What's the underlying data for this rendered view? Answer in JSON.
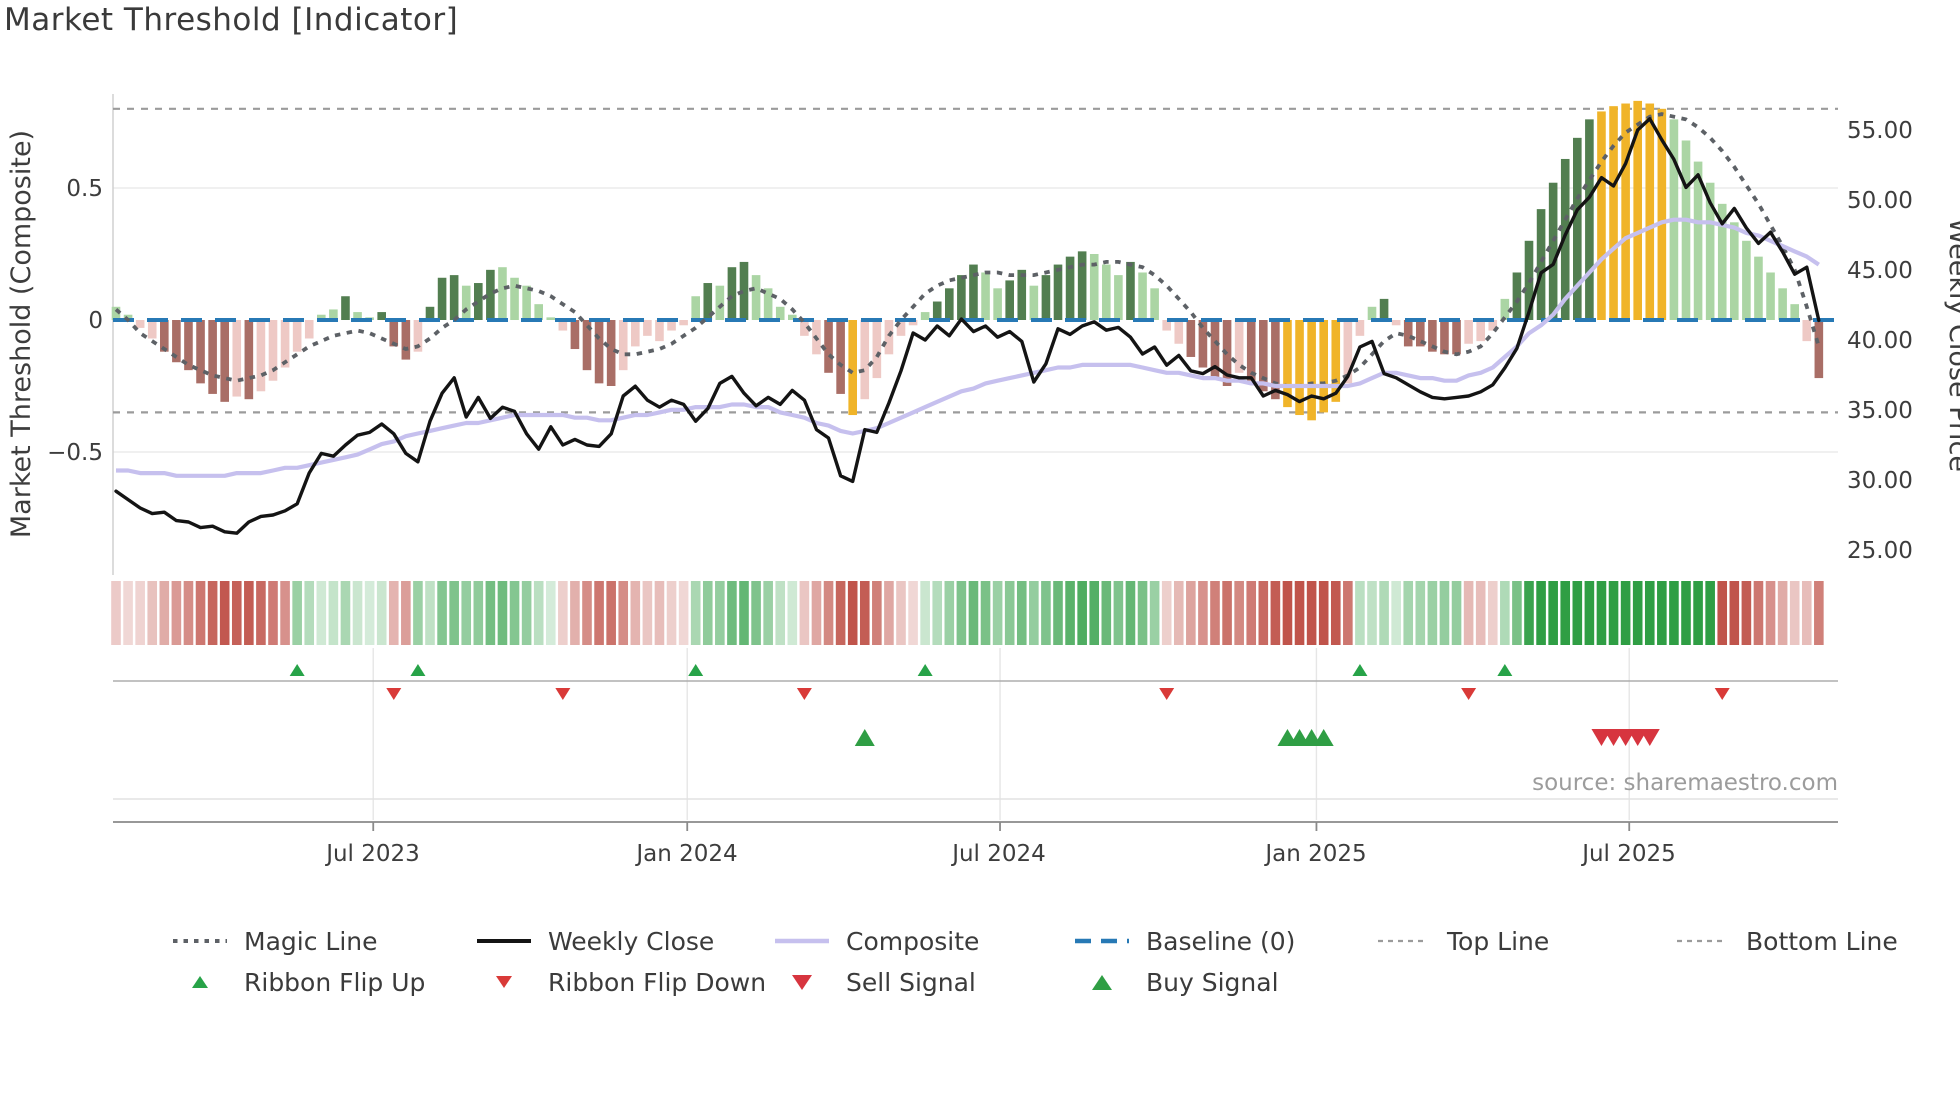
{
  "title": "Market Threshold [Indicator]",
  "source_note": "source: sharemaestro.com",
  "axes": {
    "left": {
      "label": "Market Threshold (Composite)",
      "ticks": [
        "0.5",
        "0",
        "−0.5"
      ]
    },
    "right": {
      "label": "Weekly Close Price",
      "ticks": [
        "55.00",
        "50.00",
        "45.00",
        "40.00",
        "35.00",
        "30.00",
        "25.00"
      ]
    },
    "x": {
      "ticks": [
        "Jul 2023",
        "Jan 2024",
        "Jul 2024",
        "Jan 2025",
        "Jul 2025"
      ]
    }
  },
  "legend": {
    "row1": [
      {
        "icon": "magic-line-swatch",
        "label": "Magic Line"
      },
      {
        "icon": "weekly-close-swatch",
        "label": "Weekly Close"
      },
      {
        "icon": "composite-swatch",
        "label": "Composite"
      },
      {
        "icon": "baseline-swatch",
        "label": "Baseline (0)"
      },
      {
        "icon": "top-line-swatch",
        "label": "Top Line"
      },
      {
        "icon": "bottom-line-swatch",
        "label": "Bottom Line"
      }
    ],
    "row2": [
      {
        "icon": "ribbon-flip-up-icon",
        "label": "Ribbon Flip Up"
      },
      {
        "icon": "ribbon-flip-down-icon",
        "label": "Ribbon Flip Down"
      },
      {
        "icon": "sell-signal-icon",
        "label": "Sell Signal"
      },
      {
        "icon": "buy-signal-icon",
        "label": "Buy Signal"
      }
    ]
  },
  "chart_data": {
    "type": "mixed",
    "title": "Market Threshold [Indicator]",
    "n_weeks": 142,
    "baseline": 0,
    "top_line": 0.8,
    "bottom_line": -0.35,
    "ylim_left": [
      -0.97,
      0.86
    ],
    "ylim_right": [
      23.2,
      57.6
    ],
    "x_tick_labels": [
      "Jul 2023",
      "Jan 2024",
      "Jul 2024",
      "Jan 2025",
      "Jul 2025"
    ],
    "x_tick_weeks": [
      21.3,
      47.3,
      73.2,
      99.4,
      125.3
    ],
    "histogram": {
      "name": "Market Threshold histogram",
      "values": [
        0.05,
        0.02,
        -0.03,
        -0.07,
        -0.12,
        -0.16,
        -0.19,
        -0.24,
        -0.28,
        -0.31,
        -0.29,
        -0.3,
        -0.27,
        -0.23,
        -0.18,
        -0.12,
        -0.07,
        0.02,
        0.04,
        0.09,
        0.03,
        0.01,
        0.03,
        -0.1,
        -0.15,
        -0.12,
        0.05,
        0.16,
        0.17,
        0.13,
        0.14,
        0.19,
        0.2,
        0.16,
        0.13,
        0.06,
        0.01,
        -0.04,
        -0.11,
        -0.19,
        -0.24,
        -0.25,
        -0.19,
        -0.1,
        -0.06,
        -0.08,
        -0.04,
        -0.02,
        0.09,
        0.14,
        0.13,
        0.2,
        0.22,
        0.17,
        0.12,
        0.05,
        0.02,
        -0.06,
        -0.13,
        -0.2,
        -0.28,
        -0.36,
        -0.3,
        -0.22,
        -0.13,
        -0.06,
        -0.02,
        0.03,
        0.07,
        0.12,
        0.17,
        0.21,
        0.18,
        0.12,
        0.15,
        0.19,
        0.13,
        0.17,
        0.21,
        0.24,
        0.26,
        0.25,
        0.21,
        0.17,
        0.22,
        0.18,
        0.12,
        -0.04,
        -0.09,
        -0.14,
        -0.18,
        -0.22,
        -0.25,
        -0.2,
        -0.23,
        -0.27,
        -0.3,
        -0.33,
        -0.36,
        -0.38,
        -0.35,
        -0.31,
        -0.24,
        -0.06,
        0.05,
        0.08,
        -0.02,
        -0.1,
        -0.1,
        -0.12,
        -0.13,
        -0.13,
        -0.09,
        -0.08,
        -0.04,
        0.08,
        0.18,
        0.3,
        0.42,
        0.52,
        0.61,
        0.69,
        0.76,
        0.79,
        0.81,
        0.82,
        0.83,
        0.82,
        0.8,
        0.76,
        0.68,
        0.6,
        0.52,
        0.44,
        0.37,
        0.3,
        0.24,
        0.18,
        0.12,
        0.06,
        -0.08,
        -0.22
      ],
      "bar_styles": [
        "lg",
        "lg",
        "lp",
        "lp",
        "dr",
        "dr",
        "dr",
        "dr",
        "dr",
        "dr",
        "lp",
        "dr",
        "lp",
        "lp",
        "lp",
        "lp",
        "lp",
        "lg",
        "lg",
        "dg",
        "lg",
        "lg",
        "dg",
        "dr",
        "dr",
        "lp",
        "dg",
        "dg",
        "dg",
        "lg",
        "dg",
        "dg",
        "lg",
        "lg",
        "lg",
        "lg",
        "lg",
        "lp",
        "dr",
        "dr",
        "dr",
        "dr",
        "lp",
        "lp",
        "lp",
        "lp",
        "lp",
        "lp",
        "lg",
        "dg",
        "lg",
        "dg",
        "dg",
        "lg",
        "lg",
        "lg",
        "lg",
        "lp",
        "lp",
        "dr",
        "dr",
        "yl",
        "lp",
        "lp",
        "lp",
        "lp",
        "lp",
        "lg",
        "dg",
        "dg",
        "dg",
        "dg",
        "lg",
        "lg",
        "dg",
        "dg",
        "lg",
        "dg",
        "dg",
        "dg",
        "dg",
        "lg",
        "lg",
        "lg",
        "dg",
        "lg",
        "lg",
        "lp",
        "lp",
        "dr",
        "dr",
        "dr",
        "dr",
        "lp",
        "dr",
        "dr",
        "dr",
        "yl",
        "yl",
        "yl",
        "yl",
        "yl",
        "lp",
        "lp",
        "lg",
        "dg",
        "lp",
        "dr",
        "dr",
        "dr",
        "dr",
        "dr",
        "lp",
        "lp",
        "lp",
        "lg",
        "dg",
        "dg",
        "dg",
        "dg",
        "dg",
        "dg",
        "dg",
        "yl",
        "yl",
        "yl",
        "yl",
        "yl",
        "yl",
        "lg",
        "lg",
        "lg",
        "lg",
        "lg",
        "lg",
        "lg",
        "lg",
        "lg",
        "lg",
        "lg",
        "lp",
        "dr"
      ]
    },
    "series": [
      {
        "name": "Magic Line",
        "axis": "left",
        "style": "dotted-gray",
        "values": [
          0.04,
          0.0,
          -0.05,
          -0.08,
          -0.11,
          -0.14,
          -0.17,
          -0.19,
          -0.21,
          -0.22,
          -0.23,
          -0.22,
          -0.21,
          -0.19,
          -0.16,
          -0.13,
          -0.1,
          -0.08,
          -0.06,
          -0.05,
          -0.04,
          -0.05,
          -0.07,
          -0.09,
          -0.11,
          -0.1,
          -0.07,
          -0.03,
          0.0,
          0.04,
          0.07,
          0.1,
          0.12,
          0.13,
          0.12,
          0.11,
          0.09,
          0.06,
          0.03,
          -0.02,
          -0.07,
          -0.11,
          -0.13,
          -0.13,
          -0.12,
          -0.11,
          -0.09,
          -0.06,
          -0.03,
          0.01,
          0.05,
          0.09,
          0.11,
          0.12,
          0.1,
          0.08,
          0.04,
          -0.01,
          -0.07,
          -0.13,
          -0.17,
          -0.2,
          -0.19,
          -0.14,
          -0.06,
          0.0,
          0.05,
          0.1,
          0.13,
          0.15,
          0.16,
          0.17,
          0.18,
          0.18,
          0.17,
          0.17,
          0.17,
          0.18,
          0.19,
          0.2,
          0.21,
          0.21,
          0.22,
          0.22,
          0.21,
          0.2,
          0.17,
          0.13,
          0.08,
          0.03,
          -0.03,
          -0.08,
          -0.13,
          -0.17,
          -0.2,
          -0.22,
          -0.24,
          -0.25,
          -0.25,
          -0.24,
          -0.24,
          -0.23,
          -0.21,
          -0.18,
          -0.13,
          -0.08,
          -0.05,
          -0.06,
          -0.08,
          -0.1,
          -0.12,
          -0.13,
          -0.12,
          -0.1,
          -0.05,
          0.01,
          0.07,
          0.14,
          0.22,
          0.3,
          0.38,
          0.46,
          0.53,
          0.6,
          0.66,
          0.71,
          0.74,
          0.77,
          0.78,
          0.77,
          0.76,
          0.73,
          0.69,
          0.64,
          0.58,
          0.51,
          0.44,
          0.36,
          0.28,
          0.19,
          0.05,
          -0.1
        ]
      },
      {
        "name": "Composite",
        "axis": "left",
        "style": "lavender",
        "values": [
          -0.57,
          -0.57,
          -0.58,
          -0.58,
          -0.58,
          -0.59,
          -0.59,
          -0.59,
          -0.59,
          -0.59,
          -0.58,
          -0.58,
          -0.58,
          -0.57,
          -0.56,
          -0.56,
          -0.55,
          -0.54,
          -0.53,
          -0.52,
          -0.51,
          -0.49,
          -0.47,
          -0.46,
          -0.44,
          -0.43,
          -0.42,
          -0.41,
          -0.4,
          -0.39,
          -0.39,
          -0.38,
          -0.37,
          -0.36,
          -0.36,
          -0.36,
          -0.36,
          -0.36,
          -0.37,
          -0.37,
          -0.38,
          -0.38,
          -0.37,
          -0.36,
          -0.36,
          -0.35,
          -0.34,
          -0.34,
          -0.33,
          -0.33,
          -0.33,
          -0.32,
          -0.32,
          -0.33,
          -0.33,
          -0.35,
          -0.36,
          -0.37,
          -0.39,
          -0.4,
          -0.42,
          -0.43,
          -0.42,
          -0.41,
          -0.39,
          -0.37,
          -0.35,
          -0.33,
          -0.31,
          -0.29,
          -0.27,
          -0.26,
          -0.24,
          -0.23,
          -0.22,
          -0.21,
          -0.2,
          -0.19,
          -0.18,
          -0.18,
          -0.17,
          -0.17,
          -0.17,
          -0.17,
          -0.17,
          -0.18,
          -0.19,
          -0.2,
          -0.2,
          -0.21,
          -0.22,
          -0.22,
          -0.23,
          -0.23,
          -0.24,
          -0.24,
          -0.25,
          -0.25,
          -0.25,
          -0.25,
          -0.25,
          -0.25,
          -0.25,
          -0.24,
          -0.22,
          -0.2,
          -0.2,
          -0.21,
          -0.22,
          -0.22,
          -0.23,
          -0.23,
          -0.21,
          -0.2,
          -0.18,
          -0.14,
          -0.1,
          -0.05,
          -0.02,
          0.02,
          0.08,
          0.13,
          0.18,
          0.23,
          0.27,
          0.31,
          0.33,
          0.35,
          0.37,
          0.38,
          0.38,
          0.37,
          0.37,
          0.36,
          0.35,
          0.33,
          0.32,
          0.3,
          0.28,
          0.26,
          0.24,
          0.21
        ]
      },
      {
        "name": "Weekly Close",
        "axis": "right",
        "style": "black",
        "values": [
          29.2,
          28.6,
          28.0,
          27.6,
          27.7,
          27.1,
          27.0,
          26.6,
          26.7,
          26.3,
          26.2,
          27.0,
          27.4,
          27.5,
          27.8,
          28.3,
          30.5,
          31.9,
          31.7,
          32.5,
          33.2,
          33.4,
          34.0,
          33.3,
          31.9,
          31.3,
          34.2,
          36.2,
          37.3,
          34.5,
          35.9,
          34.4,
          35.2,
          34.9,
          33.3,
          32.2,
          33.8,
          32.5,
          32.9,
          32.5,
          32.4,
          33.3,
          36.0,
          36.7,
          35.7,
          35.2,
          35.7,
          35.4,
          34.2,
          35.1,
          36.9,
          37.4,
          36.2,
          35.3,
          35.9,
          35.4,
          36.4,
          35.7,
          33.6,
          33.0,
          30.3,
          29.9,
          33.6,
          33.4,
          35.5,
          37.8,
          40.5,
          40.0,
          41.0,
          40.3,
          41.5,
          40.6,
          41.0,
          40.2,
          40.6,
          39.9,
          37.0,
          38.3,
          40.8,
          40.4,
          41.0,
          41.3,
          40.7,
          40.9,
          40.2,
          39.0,
          39.5,
          38.2,
          38.9,
          37.8,
          37.6,
          38.1,
          37.5,
          37.3,
          37.3,
          36.0,
          36.4,
          36.1,
          35.6,
          36.0,
          35.8,
          36.2,
          37.4,
          39.5,
          39.9,
          37.6,
          37.3,
          36.8,
          36.3,
          35.9,
          35.8,
          35.9,
          36.0,
          36.3,
          36.8,
          38.0,
          39.4,
          42.0,
          44.8,
          45.4,
          47.5,
          49.3,
          50.2,
          51.6,
          51.0,
          52.6,
          55.0,
          55.8,
          54.3,
          52.9,
          50.9,
          51.8,
          49.8,
          48.3,
          49.4,
          48.0,
          46.9,
          47.7,
          46.3,
          44.7,
          45.2,
          41.4
        ]
      }
    ],
    "ribbon_runs": [
      {
        "from": 0,
        "to": 14,
        "dir": "down"
      },
      {
        "from": 15,
        "to": 22,
        "dir": "up"
      },
      {
        "from": 23,
        "to": 24,
        "dir": "down"
      },
      {
        "from": 25,
        "to": 36,
        "dir": "up"
      },
      {
        "from": 37,
        "to": 47,
        "dir": "down"
      },
      {
        "from": 48,
        "to": 56,
        "dir": "up"
      },
      {
        "from": 57,
        "to": 66,
        "dir": "down"
      },
      {
        "from": 67,
        "to": 86,
        "dir": "up"
      },
      {
        "from": 87,
        "to": 102,
        "dir": "down"
      },
      {
        "from": 103,
        "to": 111,
        "dir": "up"
      },
      {
        "from": 112,
        "to": 114,
        "dir": "down"
      },
      {
        "from": 115,
        "to": 132,
        "dir": "up"
      },
      {
        "from": 133,
        "to": 141,
        "dir": "down"
      }
    ],
    "signals": {
      "ribbon_flip_up": [
        15,
        25,
        48,
        67,
        103,
        115
      ],
      "ribbon_flip_down": [
        23,
        37,
        57,
        87,
        112,
        133
      ],
      "buy": [
        62,
        97,
        98,
        99,
        100
      ],
      "sell": [
        123,
        124,
        125,
        126,
        127
      ]
    },
    "colors": {
      "bar_dark_green": "#527e50",
      "bar_light_green": "#abd5a4",
      "bar_yellow": "#f0b429",
      "bar_light_pink": "#eec9c5",
      "bar_dark_red": "#a96e66",
      "weekly_close": "#141414",
      "composite": "#c6c0ee",
      "magic_line": "#5d6166",
      "baseline": "#2779b5",
      "guide_lines": "#9b9b9b",
      "ribbon_up": "#2f9e44",
      "ribbon_down": "#c0544b",
      "flip_up": "#27a348",
      "flip_down": "#d93a38",
      "buy": "#2f9e44",
      "sell": "#d7353f"
    },
    "legend_position": "bottom",
    "grid": "horizontal at ±0.5 only; vertical date guides in signal panel"
  }
}
